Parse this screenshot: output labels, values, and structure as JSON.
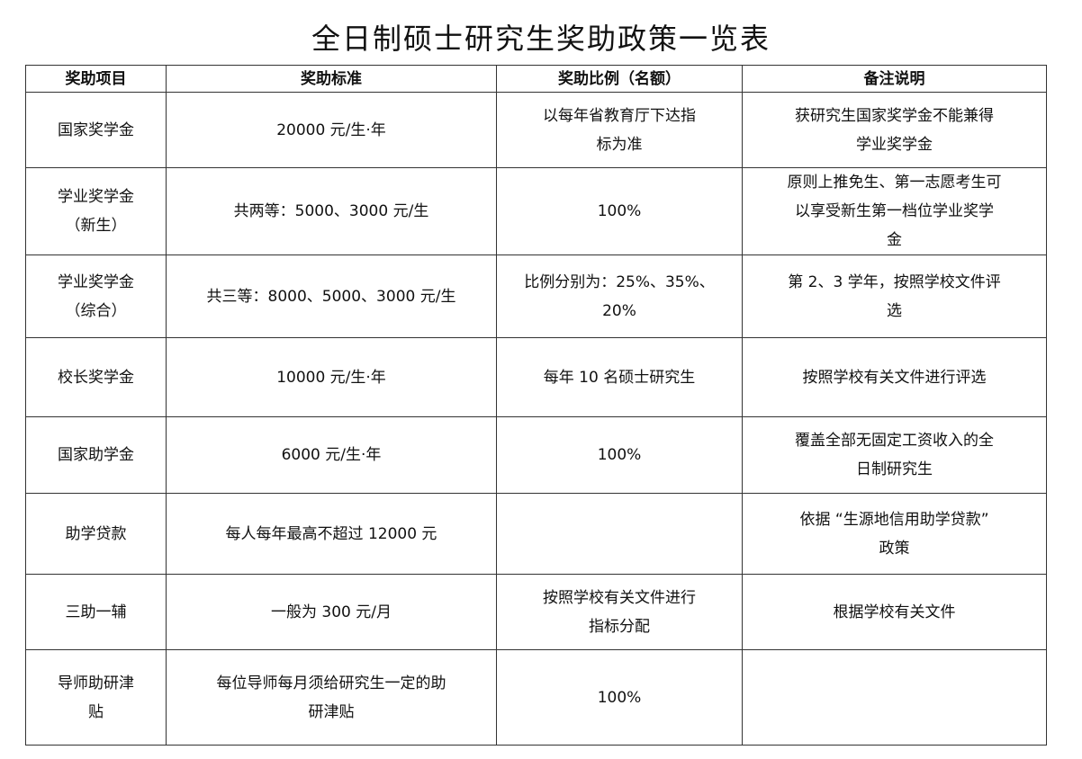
{
  "title": "全日制硕士研究生奖助政策一览表",
  "headers": [
    "奖助项目",
    "奖助标准",
    "奖助比例（名额）",
    "备注说明"
  ],
  "rows": [
    [
      "国家奖学金",
      "20000 元/生·年",
      "以每年省教育厅下达指\n标为准",
      "获研究生国家奖学金不能兼得\n学业奖学金"
    ],
    [
      "学业奖学金\n（新生）",
      "共两等：5000、3000 元/生",
      "100%",
      "原则上推免生、第一志愿考生可\n以享受新生第一档位学业奖学\n金"
    ],
    [
      "学业奖学金\n（综合）",
      "共三等：8000、5000、3000 元/生",
      "比例分别为：25%、35%、\n20%",
      "第 2、3 学年，按照学校文件评\n选"
    ],
    [
      "校长奖学金",
      "10000 元/生·年",
      "每年 10 名硕士研究生",
      "按照学校有关文件进行评选"
    ],
    [
      "国家助学金",
      "6000 元/生·年",
      "100%",
      "覆盖全部无固定工资收入的全\n日制研究生"
    ],
    [
      "助学贷款",
      "每人每年最高不超过 12000 元",
      "",
      "依据 “生源地信用助学贷款”\n政策"
    ],
    [
      "三助一辅",
      "一般为 300 元/月",
      "按照学校有关文件进行\n指标分配",
      "根据学校有关文件"
    ],
    [
      "导师助研津\n贴",
      "每位导师每月须给研究生一定的助\n研津贴",
      "100%",
      ""
    ]
  ]
}
